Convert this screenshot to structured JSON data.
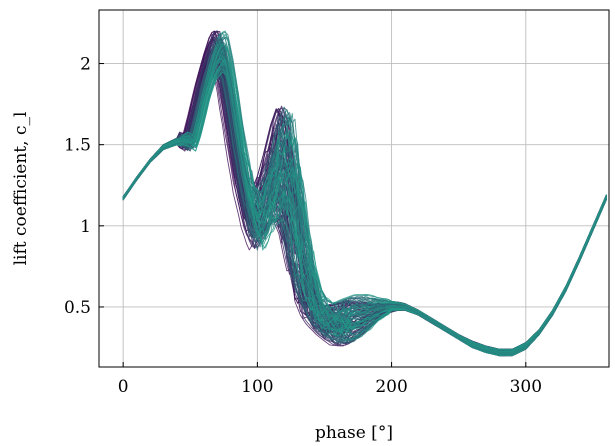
{
  "chart_data": {
    "type": "line",
    "title": "",
    "xlabel": "phase [°]",
    "ylabel": "lift coefficient, c_l",
    "xlim": [
      -18,
      362
    ],
    "ylim": [
      0.13,
      2.33
    ],
    "xticks": [
      0,
      100,
      200,
      300
    ],
    "yticks": [
      0.5,
      1,
      1.5,
      2
    ],
    "grid": true,
    "legend": "none",
    "color_low": "#440154",
    "color_high": "#21a08a",
    "series_count": 120,
    "envelope": {
      "x": [
        0,
        10,
        20,
        30,
        40,
        45,
        50,
        55,
        60,
        65,
        70,
        72,
        74,
        78,
        82,
        88,
        95,
        100,
        105,
        110,
        115,
        120,
        125,
        130,
        135,
        140,
        145,
        150,
        155,
        160,
        170,
        180,
        190,
        200,
        210,
        220,
        230,
        240,
        250,
        260,
        270,
        280,
        290,
        300,
        310,
        320,
        330,
        340,
        350,
        360
      ],
      "y_low": [
        1.16,
        1.28,
        1.39,
        1.47,
        1.5,
        1.49,
        1.46,
        1.6,
        1.78,
        1.9,
        1.95,
        1.93,
        1.9,
        1.72,
        1.5,
        1.2,
        0.95,
        0.85,
        0.92,
        1.0,
        1.05,
        0.95,
        0.75,
        0.6,
        0.5,
        0.42,
        0.37,
        0.34,
        0.32,
        0.3,
        0.31,
        0.37,
        0.44,
        0.48,
        0.48,
        0.45,
        0.4,
        0.35,
        0.3,
        0.25,
        0.22,
        0.2,
        0.2,
        0.24,
        0.33,
        0.45,
        0.6,
        0.78,
        0.97,
        1.16
      ],
      "y_high": [
        1.18,
        1.3,
        1.41,
        1.5,
        1.54,
        1.58,
        1.55,
        1.72,
        1.9,
        2.05,
        2.18,
        2.2,
        2.2,
        2.05,
        1.85,
        1.5,
        1.25,
        1.2,
        1.3,
        1.45,
        1.62,
        1.74,
        1.65,
        1.4,
        1.05,
        0.78,
        0.62,
        0.55,
        0.53,
        0.55,
        0.58,
        0.58,
        0.56,
        0.54,
        0.52,
        0.48,
        0.43,
        0.38,
        0.33,
        0.29,
        0.26,
        0.24,
        0.24,
        0.28,
        0.36,
        0.48,
        0.63,
        0.81,
        1.0,
        1.19
      ]
    }
  }
}
